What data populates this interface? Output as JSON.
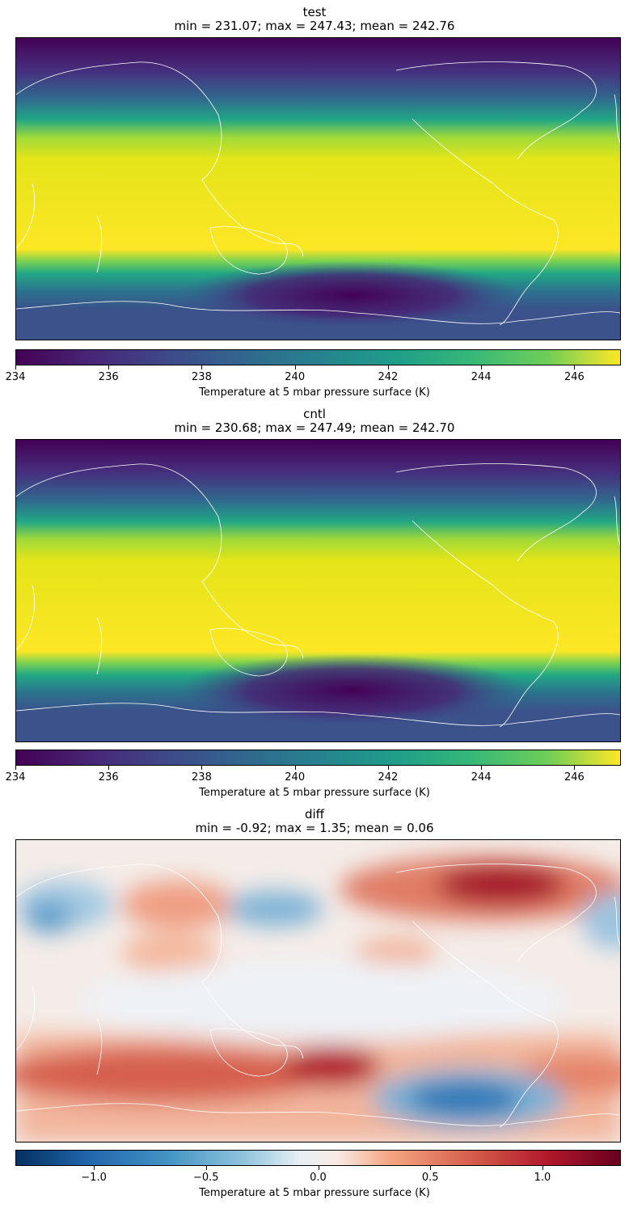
{
  "chart_data": [
    {
      "type": "heatmap",
      "panel": "test",
      "title": "test",
      "subtitle": "min = 231.07; max = 247.43; mean = 242.76",
      "stats": {
        "min": 231.07,
        "max": 247.43,
        "mean": 242.76
      },
      "colormap": "viridis",
      "clim": [
        234,
        247
      ],
      "colorbar_ticks": [
        "234",
        "236",
        "238",
        "240",
        "242",
        "244",
        "246"
      ],
      "colorbar_tick_values": [
        234,
        236,
        238,
        240,
        242,
        244,
        246
      ],
      "colorbar_label": "Temperature at 5 mbar pressure surface (K)",
      "colorbar_location": "bottom",
      "projection": "Pacific-centered equirectangular global map with coastlines"
    },
    {
      "type": "heatmap",
      "panel": "cntl",
      "title": "cntl",
      "subtitle": "min = 230.68; max = 247.49; mean = 242.70",
      "stats": {
        "min": 230.68,
        "max": 247.49,
        "mean": 242.7
      },
      "colormap": "viridis",
      "clim": [
        234,
        247
      ],
      "colorbar_ticks": [
        "234",
        "236",
        "238",
        "240",
        "242",
        "244",
        "246"
      ],
      "colorbar_tick_values": [
        234,
        236,
        238,
        240,
        242,
        244,
        246
      ],
      "colorbar_label": "Temperature at 5 mbar pressure surface (K)",
      "colorbar_location": "bottom",
      "projection": "Pacific-centered equirectangular global map with coastlines"
    },
    {
      "type": "heatmap",
      "panel": "diff",
      "title": "diff",
      "subtitle": "min = -0.92; max = 1.35; mean = 0.06",
      "stats": {
        "min": -0.92,
        "max": 1.35,
        "mean": 0.06
      },
      "colormap": "RdBu_r",
      "clim": [
        -1.35,
        1.35
      ],
      "colorbar_ticks": [
        "−1.0",
        "−0.5",
        "0.0",
        "0.5",
        "1.0"
      ],
      "colorbar_tick_values": [
        -1.0,
        -0.5,
        0.0,
        0.5,
        1.0
      ],
      "colorbar_label": "Temperature at 5 mbar pressure surface (K)",
      "colorbar_location": "bottom",
      "projection": "Pacific-centered equirectangular global map with coastlines"
    }
  ]
}
